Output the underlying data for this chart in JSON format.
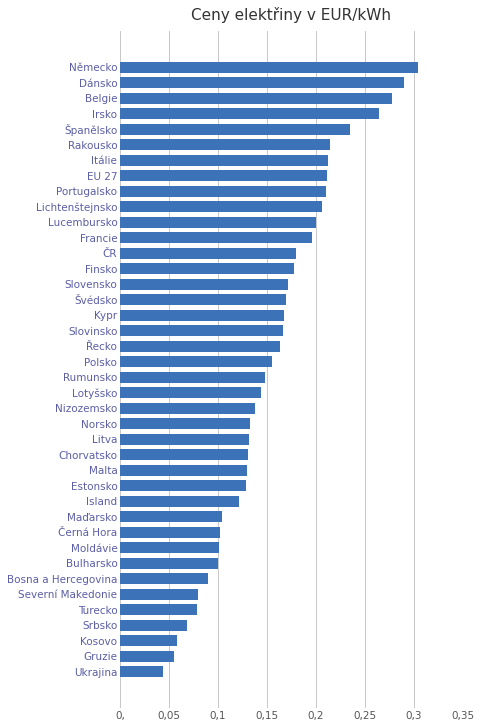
{
  "title": "Ceny elektřiny v EUR/kWh",
  "categories": [
    "Německo",
    "Dánsko",
    "Belgie",
    "Irsko",
    "Španělsko",
    "Rakousko",
    "Itálie",
    "EU 27",
    "Portugalsko",
    "Lichtenštejnsko",
    "Lucembursko",
    "Francie",
    "ČR",
    "Finsko",
    "Slovensko",
    "Švédsko",
    "Kypr",
    "Slovinsko",
    "Řecko",
    "Polsko",
    "Rumunsko",
    "Lotyšsko",
    "Nizozemsko",
    "Norsko",
    "Litva",
    "Chorvatsko",
    "Malta",
    "Estonsko",
    "Island",
    "Maďarsko",
    "Černá Hora",
    "Moldávie",
    "Bulharsko",
    "Bosna a Hercegovina",
    "Severní Makedonie",
    "Turecko",
    "Srbsko",
    "Kosovo",
    "Gruzie",
    "Ukrajina"
  ],
  "values": [
    0.305,
    0.29,
    0.278,
    0.265,
    0.235,
    0.215,
    0.213,
    0.211,
    0.21,
    0.206,
    0.2,
    0.196,
    0.18,
    0.178,
    0.172,
    0.17,
    0.168,
    0.167,
    0.163,
    0.155,
    0.148,
    0.144,
    0.138,
    0.133,
    0.132,
    0.131,
    0.13,
    0.129,
    0.122,
    0.104,
    0.102,
    0.101,
    0.1,
    0.09,
    0.08,
    0.079,
    0.068,
    0.058,
    0.055,
    0.044
  ],
  "bar_color": "#3B72B8",
  "label_color": "#5B5EA6",
  "bg_color": "#FFFFFF",
  "grid_color": "#C8C8C8",
  "xlim": [
    0,
    0.35
  ],
  "xticks": [
    0,
    0.05,
    0.1,
    0.15,
    0.2,
    0.25,
    0.3,
    0.35
  ],
  "xtick_labels": [
    "0,",
    "0,05",
    "0,1",
    "0,15",
    "0,2",
    "0,25",
    "0,3",
    "0,35"
  ],
  "title_fontsize": 11,
  "label_fontsize": 7.5,
  "tick_fontsize": 7.5,
  "bar_height": 0.72
}
